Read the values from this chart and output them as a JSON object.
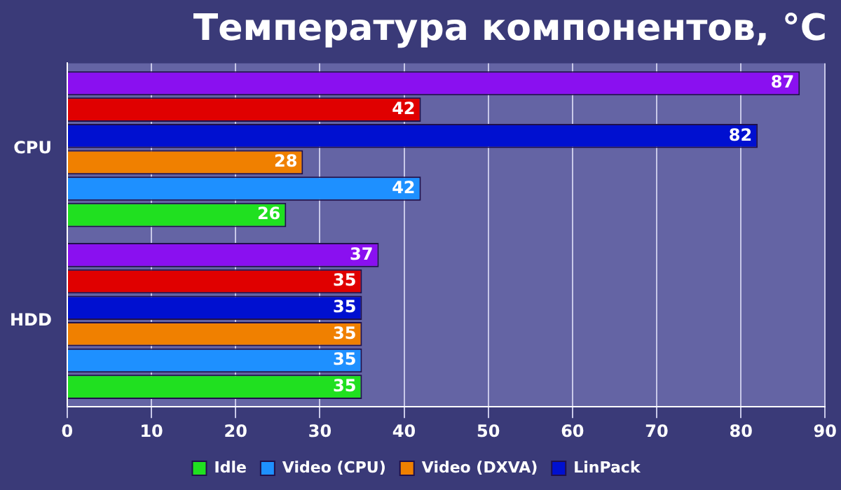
{
  "chart_data": {
    "type": "bar",
    "orientation": "horizontal",
    "title": "Температура компонентов, °C",
    "categories": [
      "CPU",
      "HDD"
    ],
    "series": [
      {
        "color": "#8a10f0",
        "values": [
          87,
          37
        ]
      },
      {
        "color": "#e00000",
        "values": [
          42,
          35
        ]
      },
      {
        "name": "LinPack",
        "color": "#0010d0",
        "values": [
          82,
          35
        ]
      },
      {
        "name": "Video (DXVA)",
        "color": "#f08000",
        "values": [
          28,
          35
        ]
      },
      {
        "name": "Video (CPU)",
        "color": "#1e90ff",
        "values": [
          42,
          35
        ]
      },
      {
        "name": "Idle",
        "color": "#20e020",
        "values": [
          26,
          35
        ]
      }
    ],
    "xlim": [
      0,
      90
    ],
    "xticks": [
      0,
      10,
      20,
      30,
      40,
      50,
      60,
      70,
      80,
      90
    ],
    "grid": "x",
    "legend": "bottom",
    "data_labels": true
  }
}
